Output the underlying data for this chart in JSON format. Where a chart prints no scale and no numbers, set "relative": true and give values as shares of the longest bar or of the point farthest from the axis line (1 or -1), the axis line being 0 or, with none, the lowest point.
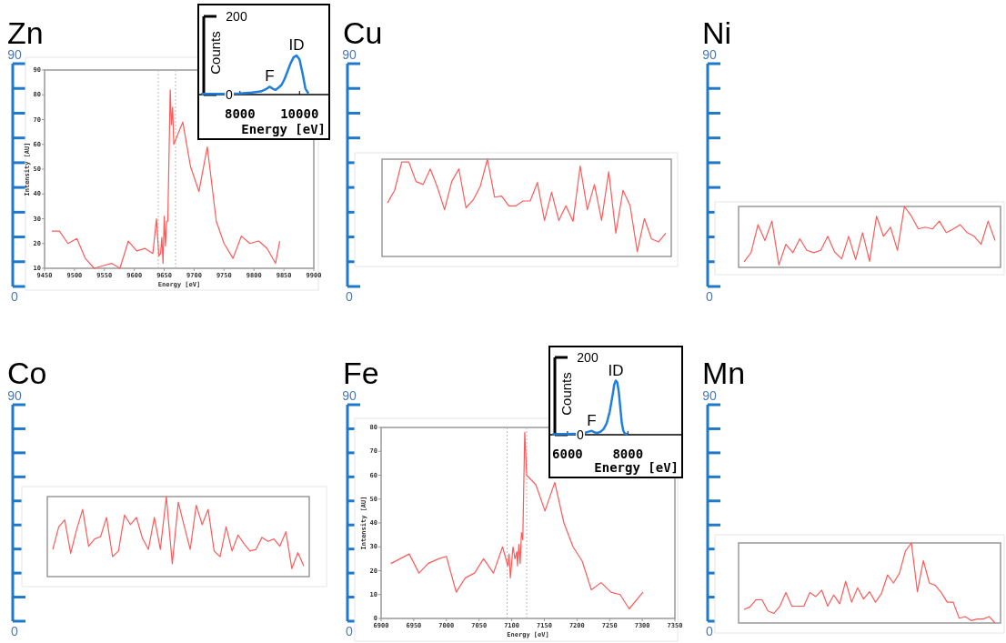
{
  "chart_data": [
    {
      "type": "line",
      "title": "Zn",
      "xlabel": "Energy [eV]",
      "ylabel": "Intensity [AU]",
      "xlim": [
        9450,
        9900
      ],
      "xticks": [
        9450,
        9500,
        9550,
        9600,
        9650,
        9700,
        9750,
        9800,
        9850,
        9900
      ],
      "ylim": [
        10,
        90
      ],
      "yticks": [
        10,
        20,
        30,
        40,
        50,
        60,
        70,
        80,
        90
      ],
      "annotations": [
        "90",
        "0"
      ],
      "x": [
        9462,
        9475,
        9489,
        9504,
        9518,
        9533,
        9547,
        9562,
        9576,
        9590,
        9604,
        9618,
        9631,
        9637,
        9641,
        9644,
        9646,
        9648,
        9650,
        9652,
        9654,
        9656,
        9660,
        9662,
        9664,
        9666,
        9681,
        9694,
        9708,
        9722,
        9737,
        9750,
        9765,
        9779,
        9793,
        9808,
        9822,
        9836,
        9843
      ],
      "values": [
        25,
        25,
        20,
        22,
        14,
        10,
        11,
        12,
        10,
        21,
        17,
        18,
        16,
        30,
        15,
        16,
        22.5,
        12,
        31,
        19,
        29,
        29,
        82,
        68,
        75,
        60,
        69,
        51,
        41,
        59,
        29,
        20,
        14,
        23,
        20,
        21,
        18,
        12,
        21
      ],
      "color": "#ff5a5a",
      "ref_lines": [
        {
          "axis": "x",
          "value": 9640,
          "color": "#bbbbbb",
          "line_style": "dotted"
        },
        {
          "axis": "x",
          "value": 9669,
          "color": "#bbbbbb",
          "line_style": "dotted"
        }
      ]
    },
    {
      "type": "line",
      "title": "Cu",
      "relative": true,
      "annotations": [
        "90",
        "0"
      ],
      "categories": [
        null,
        null,
        null,
        null,
        null,
        null,
        null,
        null,
        null,
        null,
        null,
        null,
        null,
        null,
        null,
        null,
        null,
        null,
        null,
        null,
        null,
        null,
        null,
        null,
        null,
        null,
        null,
        null,
        null,
        null,
        null,
        null,
        null,
        null,
        null,
        null,
        null,
        null,
        null,
        null
      ],
      "values": [
        0.55,
        0.68,
        0.97,
        0.97,
        0.77,
        0.74,
        0.9,
        0.71,
        0.48,
        0.77,
        0.9,
        0.5,
        0.58,
        0.72,
        1.0,
        0.61,
        0.62,
        0.52,
        0.52,
        0.57,
        0.57,
        0.76,
        0.37,
        0.66,
        0.37,
        0.52,
        0.36,
        0.93,
        0.48,
        0.74,
        0.37,
        0.87,
        0.24,
        0.68,
        0.52,
        0.05,
        0.39,
        0.18,
        0.15,
        0.24
      ],
      "color": "#ff5a5a"
    },
    {
      "type": "line",
      "title": "Ni",
      "relative": true,
      "annotations": [
        "90",
        "0"
      ],
      "categories": [
        null,
        null,
        null,
        null,
        null,
        null,
        null,
        null,
        null,
        null,
        null,
        null,
        null,
        null,
        null,
        null,
        null,
        null,
        null,
        null,
        null,
        null,
        null,
        null,
        null,
        null,
        null,
        null,
        null,
        null,
        null,
        null,
        null,
        null,
        null,
        null,
        null
      ],
      "values": [
        0.09,
        0.24,
        0.7,
        0.44,
        0.76,
        0.04,
        0.38,
        0.24,
        0.47,
        0.28,
        0.24,
        0.28,
        0.51,
        0.25,
        0.14,
        0.51,
        0.13,
        0.57,
        0.1,
        0.84,
        0.51,
        0.66,
        0.28,
        1.0,
        0.84,
        0.63,
        0.66,
        0.63,
        0.76,
        0.57,
        0.63,
        0.7,
        0.57,
        0.51,
        0.38,
        0.76,
        0.44
      ],
      "color": "#ff5a5a"
    },
    {
      "type": "line",
      "title": "Co",
      "relative": true,
      "annotations": [
        "90",
        "0"
      ],
      "categories": [
        null,
        null,
        null,
        null,
        null,
        null,
        null,
        null,
        null,
        null,
        null,
        null,
        null,
        null,
        null,
        null,
        null,
        null,
        null,
        null,
        null,
        null,
        null,
        null,
        null,
        null,
        null,
        null,
        null,
        null,
        null,
        null,
        null,
        null,
        null,
        null,
        null,
        null,
        null,
        null,
        null,
        null,
        null
      ],
      "values": [
        0.34,
        0.62,
        0.71,
        0.29,
        0.59,
        0.84,
        0.38,
        0.47,
        0.5,
        0.74,
        0.25,
        0.32,
        0.77,
        0.65,
        0.74,
        0.48,
        0.34,
        0.74,
        0.34,
        1.0,
        0.16,
        0.93,
        0.63,
        0.34,
        0.89,
        0.65,
        0.84,
        0.32,
        0.25,
        0.62,
        0.32,
        0.52,
        0.41,
        0.32,
        0.34,
        0.49,
        0.44,
        0.47,
        0.38,
        0.56,
        0.1,
        0.3,
        0.13
      ],
      "color": "#ff5a5a"
    },
    {
      "type": "line",
      "title": "Fe",
      "xlabel": "Energy [eV]",
      "ylabel": "Intensity [AU]",
      "xlim": [
        6900,
        7350
      ],
      "xticks": [
        6900,
        6950,
        7000,
        7050,
        7100,
        7150,
        7200,
        7250,
        7300,
        7350
      ],
      "ylim": [
        0,
        80
      ],
      "yticks": [
        0,
        10,
        20,
        30,
        40,
        50,
        60,
        70,
        80
      ],
      "annotations": [
        "90",
        "0"
      ],
      "x": [
        6915,
        6943,
        6958,
        6972,
        6988,
        7000,
        7015,
        7029,
        7043,
        7057,
        7072,
        7086,
        7094,
        7096,
        7098,
        7102,
        7105,
        7108,
        7109,
        7111,
        7113,
        7115,
        7117,
        7120,
        7123,
        7137,
        7151,
        7166,
        7180,
        7194,
        7208,
        7222,
        7237,
        7252,
        7266,
        7280,
        7301
      ],
      "values": [
        23,
        27,
        19,
        23,
        25,
        26,
        11,
        17,
        19,
        25,
        19,
        30,
        22,
        27,
        17,
        30,
        25,
        28,
        22,
        31,
        23,
        36,
        33,
        78,
        60,
        56,
        45,
        57,
        40,
        30,
        24,
        12,
        15,
        11,
        10,
        4,
        11
      ],
      "color": "#ff5a5a",
      "ref_lines": [
        {
          "axis": "x",
          "value": 7093,
          "color": "#bbbbbb",
          "line_style": "dotted"
        },
        {
          "axis": "x",
          "value": 7123,
          "color": "#bbbbbb",
          "line_style": "dotted"
        }
      ]
    },
    {
      "type": "line",
      "title": "Mn",
      "relative": true,
      "annotations": [
        "90",
        "0"
      ],
      "categories": [
        null,
        null,
        null,
        null,
        null,
        null,
        null,
        null,
        null,
        null,
        null,
        null,
        null,
        null,
        null,
        null,
        null,
        null,
        null,
        null,
        null,
        null,
        null,
        null,
        null,
        null,
        null,
        null,
        null,
        null,
        null,
        null,
        null,
        null,
        null,
        null,
        null,
        null,
        null,
        null,
        null,
        null,
        null
      ],
      "values": [
        0.17,
        0.2,
        0.29,
        0.29,
        0.15,
        0.12,
        0.21,
        0.38,
        0.21,
        0.21,
        0.21,
        0.38,
        0.33,
        0.41,
        0.21,
        0.35,
        0.24,
        0.52,
        0.26,
        0.44,
        0.3,
        0.39,
        0.26,
        0.37,
        0.6,
        0.5,
        0.62,
        0.9,
        1.0,
        0.39,
        0.78,
        0.5,
        0.47,
        0.38,
        0.26,
        0.26,
        0.06,
        0.08,
        0.03,
        0.05,
        0.05,
        0.08,
        0
      ],
      "color": "#ff5a5a"
    },
    {
      "type": "line",
      "xlabel": "Energy [eV]",
      "ylabel": "Counts",
      "xlim": [
        6600,
        11000
      ],
      "xticks": [
        8000,
        10000
      ],
      "ylim": [
        0,
        200
      ],
      "yticks": [
        0,
        200
      ],
      "x": [
        6700,
        7000,
        7500,
        8000,
        8400,
        8700,
        8900,
        9000,
        9100,
        9200,
        9300,
        9400,
        9500,
        9600,
        9700,
        9800,
        9900,
        10000,
        10100,
        10200,
        10300
      ],
      "values": [
        2,
        2,
        2,
        3,
        5,
        8,
        15,
        20,
        15,
        12,
        18,
        25,
        40,
        60,
        80,
        95,
        100,
        90,
        55,
        15,
        3
      ],
      "color": "#1e7fe0",
      "annotations": [
        {
          "text": "F",
          "x": 9000,
          "y": 20
        },
        {
          "text": "ID",
          "x": 9900,
          "y": 100
        }
      ]
    },
    {
      "type": "line",
      "xlabel": "Energy [eV]",
      "ylabel": "Counts",
      "xlim": [
        5400,
        9800
      ],
      "xticks": [
        6000,
        8000
      ],
      "ylim": [
        0,
        200
      ],
      "yticks": [
        0,
        200
      ],
      "x": [
        5500,
        6000,
        6500,
        6700,
        6800,
        6900,
        7000,
        7100,
        7200,
        7300,
        7400,
        7500,
        7550,
        7600,
        7650,
        7700,
        7750,
        7800,
        7850,
        7900,
        8000
      ],
      "values": [
        1,
        2,
        3,
        8,
        10,
        6,
        5,
        8,
        15,
        30,
        60,
        105,
        130,
        140,
        135,
        110,
        70,
        30,
        10,
        3,
        1
      ],
      "color": "#1e7fe0",
      "annotations": [
        {
          "text": "F",
          "x": 6800,
          "y": 10
        },
        {
          "text": "ID",
          "x": 7600,
          "y": 140
        }
      ]
    }
  ]
}
